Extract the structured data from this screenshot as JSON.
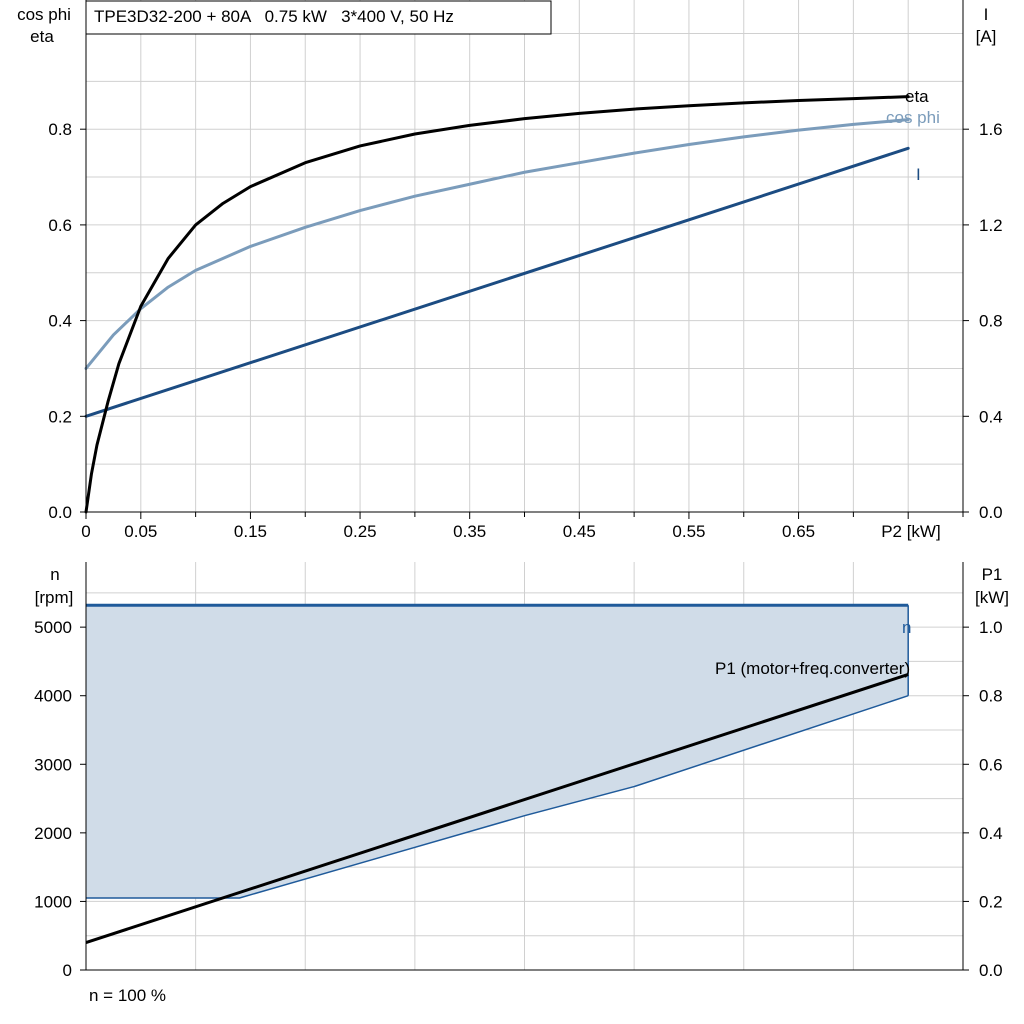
{
  "title": "TPE3D32-200 + 80A   0.75 kW   3*400 V, 50 Hz",
  "footnote": "n = 100 %",
  "colors": {
    "eta": "#000000",
    "cos_phi": "#7b9cbb",
    "current": "#1c4c82",
    "speed": "#1f5a9a",
    "speed_fill": "#d0dce8",
    "p1": "#000000"
  },
  "chart_data": [
    {
      "type": "line",
      "ylabel_left": [
        "cos phi",
        "eta"
      ],
      "ylabel_right": [
        "I",
        "[A]"
      ],
      "xlabel": "P2 [kW]",
      "xlim": [
        0,
        0.8
      ],
      "ylim_left": [
        0,
        1.07
      ],
      "ylim_right": [
        0,
        2.14
      ],
      "x_ticks": [
        "0",
        "0.05",
        "0.15",
        "0.25",
        "0.35",
        "0.45",
        "0.55",
        "0.65"
      ],
      "y_ticks_left": [
        "0.0",
        "0.2",
        "0.4",
        "0.6",
        "0.8"
      ],
      "y_ticks_right": [
        "0.0",
        "0.4",
        "0.8",
        "1.2",
        "1.6"
      ],
      "grid": true,
      "series": [
        {
          "name": "eta",
          "axis": "left",
          "x": [
            0,
            0.005,
            0.01,
            0.02,
            0.03,
            0.05,
            0.075,
            0.1,
            0.125,
            0.15,
            0.2,
            0.25,
            0.3,
            0.35,
            0.4,
            0.45,
            0.5,
            0.55,
            0.6,
            0.65,
            0.7,
            0.75
          ],
          "y": [
            0.0,
            0.08,
            0.14,
            0.23,
            0.31,
            0.43,
            0.53,
            0.6,
            0.645,
            0.68,
            0.73,
            0.765,
            0.79,
            0.808,
            0.822,
            0.833,
            0.842,
            0.849,
            0.855,
            0.86,
            0.864,
            0.868
          ]
        },
        {
          "name": "cos phi",
          "axis": "left",
          "x": [
            0,
            0.025,
            0.05,
            0.075,
            0.1,
            0.15,
            0.2,
            0.25,
            0.3,
            0.35,
            0.4,
            0.45,
            0.5,
            0.55,
            0.6,
            0.65,
            0.7,
            0.75
          ],
          "y": [
            0.3,
            0.37,
            0.425,
            0.47,
            0.505,
            0.555,
            0.595,
            0.63,
            0.66,
            0.685,
            0.71,
            0.73,
            0.75,
            0.768,
            0.784,
            0.798,
            0.81,
            0.82
          ]
        },
        {
          "name": "I",
          "axis": "right",
          "x": [
            0,
            0.75
          ],
          "y": [
            0.4,
            1.52
          ]
        }
      ]
    },
    {
      "type": "area",
      "ylabel_left": [
        "n",
        "[rpm]"
      ],
      "ylabel_right": [
        "P1",
        "[kW]"
      ],
      "xlim": [
        0,
        0.8
      ],
      "ylim_left": [
        0,
        5950
      ],
      "ylim_right": [
        0,
        1.19
      ],
      "y_ticks_left": [
        "0",
        "1000",
        "2000",
        "3000",
        "4000",
        "5000"
      ],
      "y_ticks_right": [
        "0.0",
        "0.2",
        "0.4",
        "0.6",
        "0.8",
        "1.0"
      ],
      "grid": true,
      "series": [
        {
          "name": "n",
          "axis": "left",
          "x": [
            0,
            0.75
          ],
          "y": [
            5320,
            5320
          ]
        },
        {
          "name": "P1 (motor+freq.converter)",
          "axis": "right",
          "x": [
            0,
            0.75
          ],
          "y": [
            0.08,
            0.862
          ]
        }
      ],
      "shaded_region": {
        "axis": "right",
        "top": 1.064,
        "boundary_x": [
          0,
          0.14,
          0.4,
          0.5,
          0.75
        ],
        "boundary_y": [
          0.21,
          0.21,
          0.45,
          0.535,
          0.8
        ]
      }
    }
  ]
}
